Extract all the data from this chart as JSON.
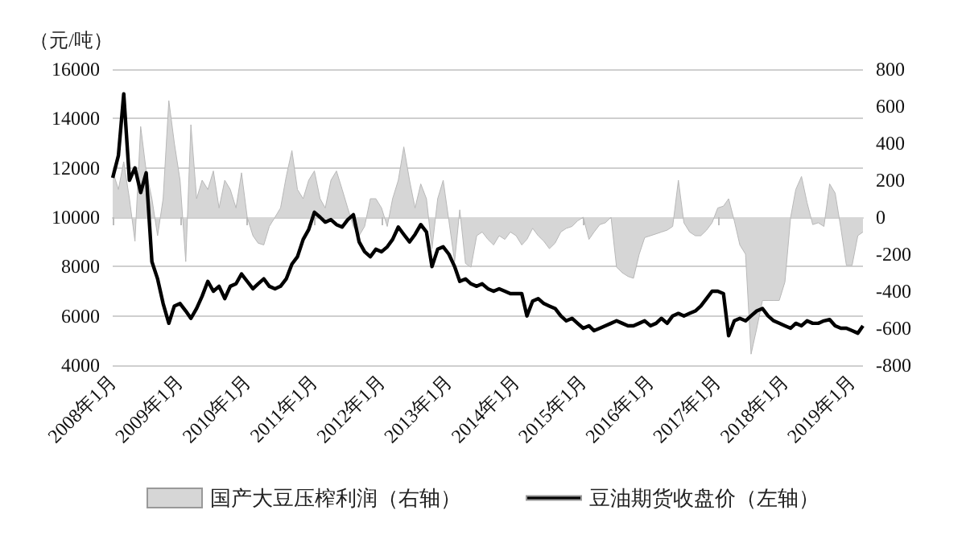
{
  "chart_data": {
    "type": "line",
    "ylabel": "（元/吨）",
    "x": [
      "2008-01",
      "2008-02",
      "2008-03",
      "2008-04",
      "2008-05",
      "2008-06",
      "2008-07",
      "2008-08",
      "2008-09",
      "2008-10",
      "2008-11",
      "2008-12",
      "2009-01",
      "2009-02",
      "2009-03",
      "2009-04",
      "2009-05",
      "2009-06",
      "2009-07",
      "2009-08",
      "2009-09",
      "2009-10",
      "2009-11",
      "2009-12",
      "2010-01",
      "2010-02",
      "2010-03",
      "2010-04",
      "2010-05",
      "2010-06",
      "2010-07",
      "2010-08",
      "2010-09",
      "2010-10",
      "2010-11",
      "2010-12",
      "2011-01",
      "2011-02",
      "2011-03",
      "2011-04",
      "2011-05",
      "2011-06",
      "2011-07",
      "2011-08",
      "2011-09",
      "2011-10",
      "2011-11",
      "2011-12",
      "2012-01",
      "2012-02",
      "2012-03",
      "2012-04",
      "2012-05",
      "2012-06",
      "2012-07",
      "2012-08",
      "2012-09",
      "2012-10",
      "2012-11",
      "2012-12",
      "2013-01",
      "2013-02",
      "2013-03",
      "2013-04",
      "2013-05",
      "2013-06",
      "2013-07",
      "2013-08",
      "2013-09",
      "2013-10",
      "2013-11",
      "2013-12",
      "2014-01",
      "2014-02",
      "2014-03",
      "2014-04",
      "2014-05",
      "2014-06",
      "2014-07",
      "2014-08",
      "2014-09",
      "2014-10",
      "2014-11",
      "2014-12",
      "2015-01",
      "2015-02",
      "2015-03",
      "2015-04",
      "2015-05",
      "2015-06",
      "2015-07",
      "2015-08",
      "2015-09",
      "2015-10",
      "2015-11",
      "2015-12",
      "2016-01",
      "2016-02",
      "2016-03",
      "2016-04",
      "2016-05",
      "2016-06",
      "2016-07",
      "2016-08",
      "2016-09",
      "2016-10",
      "2016-11",
      "2016-12",
      "2017-01",
      "2017-02",
      "2017-03",
      "2017-04",
      "2017-05",
      "2017-06",
      "2017-07",
      "2017-08",
      "2017-09",
      "2017-10",
      "2017-11",
      "2017-12",
      "2018-01",
      "2018-02",
      "2018-03",
      "2018-04",
      "2018-05",
      "2018-06",
      "2018-07",
      "2018-08",
      "2018-09",
      "2018-10",
      "2018-11",
      "2018-12",
      "2019-01",
      "2019-02",
      "2019-03"
    ],
    "series": [
      {
        "name": "国产大豆压榨利润（右轴）",
        "type": "area",
        "axis": "y2",
        "color": "#d6d6d6",
        "values": [
          250,
          150,
          300,
          100,
          -130,
          490,
          250,
          100,
          -100,
          100,
          630,
          400,
          200,
          -240,
          500,
          100,
          200,
          150,
          250,
          50,
          200,
          150,
          50,
          240,
          0,
          -100,
          -140,
          -150,
          -50,
          0,
          50,
          220,
          360,
          150,
          100,
          200,
          250,
          100,
          50,
          200,
          250,
          150,
          50,
          -50,
          -100,
          -50,
          100,
          100,
          50,
          -50,
          100,
          200,
          380,
          200,
          50,
          180,
          100,
          -170,
          100,
          200,
          -20,
          -240,
          40,
          -250,
          -270,
          -100,
          -80,
          -120,
          -150,
          -100,
          -120,
          -80,
          -100,
          -150,
          -120,
          -60,
          -100,
          -130,
          -170,
          -140,
          -80,
          -60,
          -50,
          -20,
          0,
          -120,
          -80,
          -40,
          -30,
          0,
          -270,
          -300,
          -320,
          -330,
          -200,
          -110,
          -100,
          -90,
          -80,
          -70,
          -50,
          200,
          -30,
          -80,
          -100,
          -100,
          -70,
          -30,
          50,
          60,
          100,
          -20,
          -150,
          -200,
          -740,
          -600,
          -450,
          -450,
          -450,
          -450,
          -350,
          0,
          150,
          220,
          80,
          -40,
          -30,
          -50,
          180,
          130,
          -60,
          -260,
          -260,
          -100,
          -80
        ]
      },
      {
        "name": "豆油期货收盘价（左轴）",
        "color": "#000000",
        "values": [
          11600,
          12500,
          15000,
          11500,
          12000,
          11000,
          11800,
          8200,
          7500,
          6500,
          5700,
          6400,
          6500,
          6200,
          5900,
          6300,
          6800,
          7400,
          7000,
          7200,
          6700,
          7200,
          7300,
          7700,
          7400,
          7100,
          7300,
          7500,
          7200,
          7100,
          7200,
          7500,
          8100,
          8400,
          9100,
          9500,
          10200,
          10000,
          9800,
          9900,
          9700,
          9600,
          9900,
          10100,
          9000,
          8600,
          8400,
          8700,
          8600,
          8800,
          9100,
          9600,
          9300,
          9000,
          9300,
          9700,
          9400,
          8000,
          8700,
          8800,
          8500,
          8000,
          7400,
          7500,
          7300,
          7200,
          7300,
          7100,
          7000,
          7100,
          7000,
          6900,
          6900,
          6900,
          6000,
          6600,
          6700,
          6500,
          6400,
          6300,
          6000,
          5800,
          5900,
          5700,
          5500,
          5600,
          5400,
          5500,
          5600,
          5700,
          5800,
          5700,
          5600,
          5600,
          5700,
          5800,
          5600,
          5700,
          5900,
          5700,
          6000,
          6100,
          6000,
          6100,
          6200,
          6400,
          6700,
          7000,
          7000,
          6900,
          5200,
          5800,
          5900,
          5800,
          6000,
          6200,
          6300,
          6000,
          5800,
          5700,
          5600,
          5500,
          5700,
          5600,
          5800,
          5700,
          5700,
          5800,
          5850,
          5600,
          5500,
          5500,
          5400,
          5300,
          5600
        ]
      }
    ],
    "xlim": [
      "2008-01",
      "2019-03"
    ],
    "xticks": [
      {
        "value": "2008-01",
        "label": "2008年1月"
      },
      {
        "value": "2009-01",
        "label": "2009年1月"
      },
      {
        "value": "2010-01",
        "label": "2010年1月"
      },
      {
        "value": "2011-01",
        "label": "2011年1月"
      },
      {
        "value": "2012-01",
        "label": "2012年1月"
      },
      {
        "value": "2013-01",
        "label": "2013年1月"
      },
      {
        "value": "2014-01",
        "label": "2014年1月"
      },
      {
        "value": "2015-01",
        "label": "2015年1月"
      },
      {
        "value": "2016-01",
        "label": "2016年1月"
      },
      {
        "value": "2017-01",
        "label": "2017年1月"
      },
      {
        "value": "2018-01",
        "label": "2018年1月"
      },
      {
        "value": "2019-01",
        "label": "2019年1月"
      }
    ],
    "ylim": [
      4000,
      16000
    ],
    "yticks": [
      4000,
      6000,
      8000,
      10000,
      12000,
      14000,
      16000
    ],
    "y2lim": [
      -800,
      800
    ],
    "y2ticks": [
      -800,
      -600,
      -400,
      -200,
      0,
      200,
      400,
      600,
      800
    ],
    "grid": "y",
    "legend": "bottom",
    "marker": "none",
    "line_style": "solid"
  }
}
